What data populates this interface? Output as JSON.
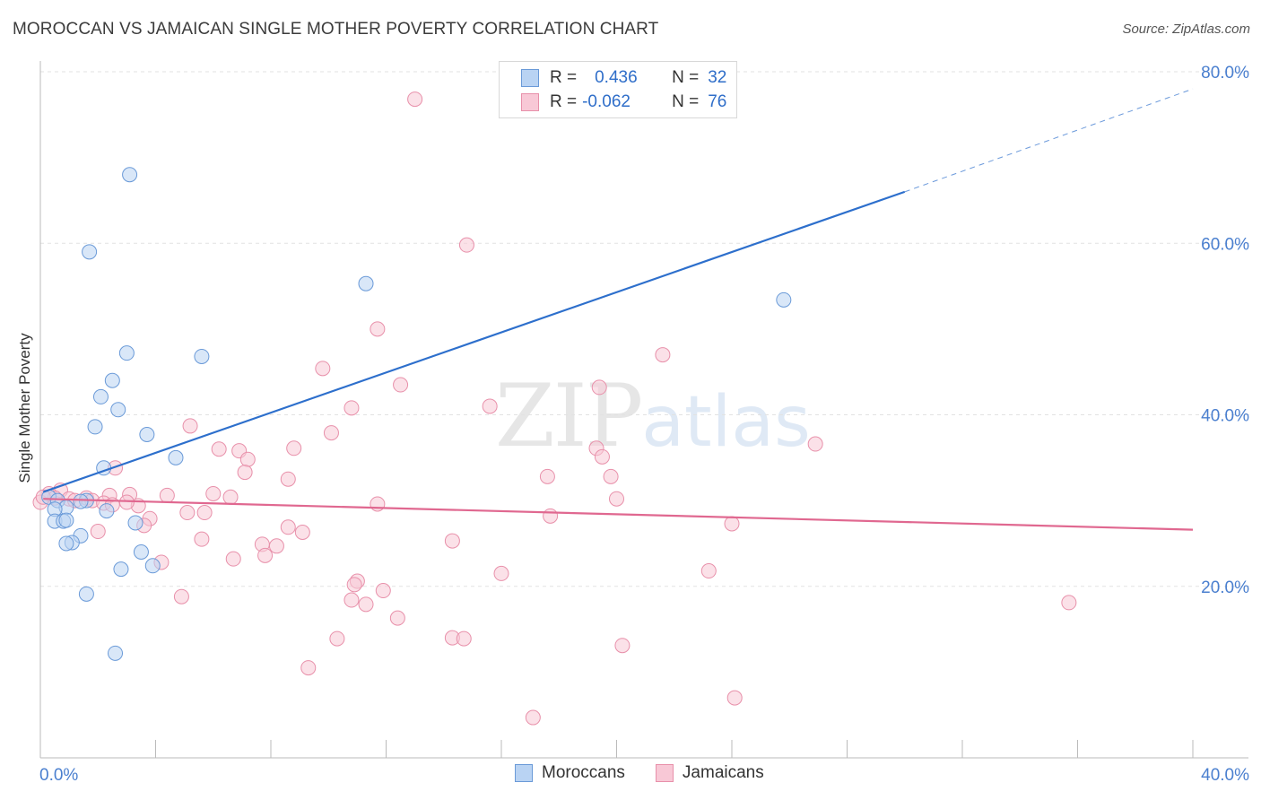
{
  "title": "MOROCCAN VS JAMAICAN SINGLE MOTHER POVERTY CORRELATION CHART",
  "source": "Source: ZipAtlas.com",
  "watermark": {
    "zip": "ZIP",
    "atlas": "atlas"
  },
  "legend": {
    "row1": {
      "r_label": "R =",
      "r_value": "0.436",
      "n_label": "N =",
      "n_value": "32"
    },
    "row2": {
      "r_label": "R =",
      "r_value": "-0.062",
      "n_label": "N =",
      "n_value": "76"
    }
  },
  "colors": {
    "moroccans_fill": "#b9d3f3",
    "moroccans_stroke": "#6a9ad8",
    "moroccans_line": "#2d6fcc",
    "jamaicans_fill": "#f8c8d6",
    "jamaicans_stroke": "#e890aa",
    "jamaicans_line": "#e06890",
    "tick_text": "#4a7fcf",
    "grid": "#e2e2e2"
  },
  "chart_data": {
    "type": "scatter",
    "title": "MOROCCAN VS JAMAICAN SINGLE MOTHER POVERTY CORRELATION CHART",
    "xlabel": "",
    "ylabel": "Single Mother Poverty",
    "xlim": [
      0,
      40
    ],
    "ylim": [
      0,
      80
    ],
    "x_tick_labels": [
      "0.0%",
      "40.0%"
    ],
    "y_tick_labels": [
      "20.0%",
      "40.0%",
      "60.0%",
      "80.0%"
    ],
    "y_ticks": [
      20,
      40,
      60,
      80
    ],
    "grid": true,
    "legend_position": "top-center",
    "series": [
      {
        "name": "Moroccans",
        "r": 0.436,
        "n": 32,
        "points": [
          [
            3.1,
            68
          ],
          [
            1.7,
            59
          ],
          [
            11.3,
            55.3
          ],
          [
            25.8,
            53.4
          ],
          [
            3.0,
            47.2
          ],
          [
            5.6,
            46.8
          ],
          [
            2.5,
            44
          ],
          [
            2.1,
            42.1
          ],
          [
            2.7,
            40.6
          ],
          [
            1.9,
            38.6
          ],
          [
            3.7,
            37.7
          ],
          [
            4.7,
            35
          ],
          [
            2.2,
            33.8
          ],
          [
            0.3,
            30.4
          ],
          [
            0.6,
            30
          ],
          [
            1.6,
            30
          ],
          [
            1.4,
            29.9
          ],
          [
            0.9,
            29.2
          ],
          [
            0.5,
            29
          ],
          [
            2.3,
            28.8
          ],
          [
            0.5,
            27.6
          ],
          [
            0.8,
            27.6
          ],
          [
            3.3,
            27.4
          ],
          [
            0.9,
            27.7
          ],
          [
            1.4,
            25.9
          ],
          [
            1.1,
            25.1
          ],
          [
            0.9,
            25
          ],
          [
            3.5,
            24
          ],
          [
            3.9,
            22.4
          ],
          [
            2.8,
            22
          ],
          [
            1.6,
            19.1
          ],
          [
            2.6,
            12.2
          ]
        ],
        "trend": {
          "x0": 0.1,
          "y0": 31,
          "x1": 30,
          "y1": 66,
          "dash_to": [
            40,
            78
          ]
        }
      },
      {
        "name": "Jamaicans",
        "r": -0.062,
        "n": 76,
        "points": [
          [
            13.0,
            76.8
          ],
          [
            14.8,
            59.8
          ],
          [
            11.7,
            50
          ],
          [
            21.6,
            47
          ],
          [
            9.8,
            45.4
          ],
          [
            12.5,
            43.5
          ],
          [
            19.4,
            43.2
          ],
          [
            15.6,
            41
          ],
          [
            10.8,
            40.8
          ],
          [
            5.2,
            38.7
          ],
          [
            10.1,
            37.9
          ],
          [
            26.9,
            36.6
          ],
          [
            6.2,
            36
          ],
          [
            6.9,
            35.8
          ],
          [
            8.8,
            36.1
          ],
          [
            19.3,
            36.1
          ],
          [
            7.2,
            34.8
          ],
          [
            19.5,
            35.1
          ],
          [
            2.6,
            33.8
          ],
          [
            7.1,
            33.3
          ],
          [
            17.6,
            32.8
          ],
          [
            19.8,
            32.8
          ],
          [
            8.6,
            32.5
          ],
          [
            0.7,
            31.2
          ],
          [
            0.3,
            30.8
          ],
          [
            0.5,
            30.3
          ],
          [
            1.0,
            30.2
          ],
          [
            1.6,
            30.3
          ],
          [
            2.4,
            30.6
          ],
          [
            3.1,
            30.7
          ],
          [
            4.4,
            30.6
          ],
          [
            6.0,
            30.8
          ],
          [
            6.6,
            30.4
          ],
          [
            1.8,
            30
          ],
          [
            2.2,
            29.7
          ],
          [
            11.7,
            29.6
          ],
          [
            3.4,
            29.4
          ],
          [
            5.1,
            28.6
          ],
          [
            5.7,
            28.6
          ],
          [
            17.7,
            28.2
          ],
          [
            3.8,
            27.9
          ],
          [
            3.6,
            27.1
          ],
          [
            8.6,
            26.9
          ],
          [
            24.0,
            27.3
          ],
          [
            2.0,
            26.4
          ],
          [
            9.1,
            26.3
          ],
          [
            5.6,
            25.5
          ],
          [
            14.3,
            25.3
          ],
          [
            7.7,
            24.9
          ],
          [
            8.2,
            24.7
          ],
          [
            7.8,
            23.6
          ],
          [
            6.7,
            23.2
          ],
          [
            4.2,
            22.8
          ],
          [
            16.0,
            21.5
          ],
          [
            23.2,
            21.8
          ],
          [
            11.0,
            20.6
          ],
          [
            10.9,
            20.2
          ],
          [
            11.9,
            19.5
          ],
          [
            4.9,
            18.8
          ],
          [
            10.8,
            18.4
          ],
          [
            11.3,
            17.9
          ],
          [
            35.7,
            18.1
          ],
          [
            12.4,
            16.3
          ],
          [
            10.3,
            13.9
          ],
          [
            14.3,
            14
          ],
          [
            14.7,
            13.9
          ],
          [
            20.2,
            13.1
          ],
          [
            9.3,
            10.5
          ],
          [
            24.1,
            7
          ],
          [
            17.1,
            4.7
          ],
          [
            0.0,
            29.8
          ],
          [
            0.1,
            30.4
          ],
          [
            1.2,
            30
          ],
          [
            2.5,
            29.5
          ],
          [
            3.0,
            29.8
          ],
          [
            20.0,
            30.2
          ]
        ],
        "trend": {
          "x0": 0.1,
          "y0": 30.2,
          "x1": 40,
          "y1": 26.6
        }
      }
    ]
  },
  "bottom_legend": {
    "moroccans": "Moroccans",
    "jamaicans": "Jamaicans"
  }
}
